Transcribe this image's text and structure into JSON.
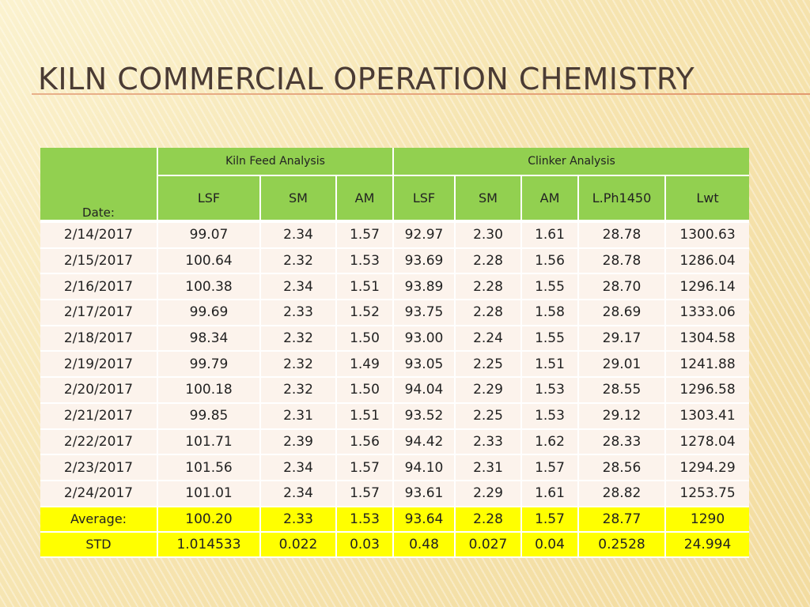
{
  "slide": {
    "title": "KILN COMMERCIAL OPERATION CHEMISTRY"
  },
  "table": {
    "date_header": "Date:",
    "group_kiln_feed": "Kiln Feed Analysis",
    "group_clinker": "Clinker Analysis",
    "columns": [
      "LSF",
      "SM",
      "AM",
      "LSF",
      "SM",
      "AM",
      "L.Ph1450",
      "Lwt"
    ],
    "rows": [
      [
        "2/14/2017",
        "99.07",
        "2.34",
        "1.57",
        "92.97",
        "2.30",
        "1.61",
        "28.78",
        "1300.63"
      ],
      [
        "2/15/2017",
        "100.64",
        "2.32",
        "1.53",
        "93.69",
        "2.28",
        "1.56",
        "28.78",
        "1286.04"
      ],
      [
        "2/16/2017",
        "100.38",
        "2.34",
        "1.51",
        "93.89",
        "2.28",
        "1.55",
        "28.70",
        "1296.14"
      ],
      [
        "2/17/2017",
        "99.69",
        "2.33",
        "1.52",
        "93.75",
        "2.28",
        "1.58",
        "28.69",
        "1333.06"
      ],
      [
        "2/18/2017",
        "98.34",
        "2.32",
        "1.50",
        "93.00",
        "2.24",
        "1.55",
        "29.17",
        "1304.58"
      ],
      [
        "2/19/2017",
        "99.79",
        "2.32",
        "1.49",
        "93.05",
        "2.25",
        "1.51",
        "29.01",
        "1241.88"
      ],
      [
        "2/20/2017",
        "100.18",
        "2.32",
        "1.50",
        "94.04",
        "2.29",
        "1.53",
        "28.55",
        "1296.58"
      ],
      [
        "2/21/2017",
        "99.85",
        "2.31",
        "1.51",
        "93.52",
        "2.25",
        "1.53",
        "29.12",
        "1303.41"
      ],
      [
        "2/22/2017",
        "101.71",
        "2.39",
        "1.56",
        "94.42",
        "2.33",
        "1.62",
        "28.33",
        "1278.04"
      ],
      [
        "2/23/2017",
        "101.56",
        "2.34",
        "1.57",
        "94.10",
        "2.31",
        "1.57",
        "28.56",
        "1294.29"
      ],
      [
        "2/24/2017",
        "101.01",
        "2.34",
        "1.57",
        "93.61",
        "2.29",
        "1.61",
        "28.82",
        "1253.75"
      ]
    ],
    "average": [
      "Average:",
      "100.20",
      "2.33",
      "1.53",
      "93.64",
      "2.28",
      "1.57",
      "28.77",
      "1290"
    ],
    "std": [
      "STD",
      "1.014533",
      "0.022",
      "0.03",
      "0.48",
      "0.027",
      "0.04",
      "0.2528",
      "24.994"
    ]
  },
  "colors": {
    "header_green": "#92d050",
    "summary_yellow": "#ffff00",
    "row_bg": "#fcf3ec",
    "title_text": "#4a3b34"
  }
}
